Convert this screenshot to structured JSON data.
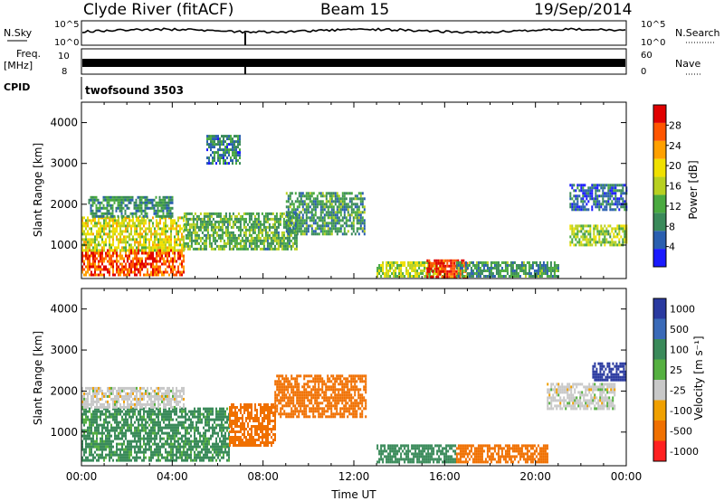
{
  "header": {
    "station": "Clyde River (fitACF)",
    "beam": "Beam 15",
    "date": "19/Sep/2014"
  },
  "aux": {
    "nsky_label": "N.Sky",
    "nsearch_label": "N.Search",
    "freq_label": "Freq.",
    "freq_unit": "[MHz]",
    "nave_label": "Nave",
    "cpid_label": "CPID",
    "cpid_value": "twofsound 3503",
    "noise_ticks": [
      "10^5",
      "10^0"
    ],
    "freq_ticks": [
      "10",
      "8"
    ],
    "nave_ticks": [
      "60",
      "0"
    ]
  },
  "colors": {
    "power": [
      "#1a1aff",
      "#2a5fb0",
      "#3a8a5a",
      "#4aaa40",
      "#b8d020",
      "#f0e000",
      "#ffa000",
      "#ff5500",
      "#e00000"
    ],
    "velocity": [
      "#2a3aa0",
      "#3a6ab8",
      "#3a8a5a",
      "#55b040",
      "#c8c8c8",
      "#f0a000",
      "#f07000",
      "#ff2020"
    ]
  },
  "chart_data": [
    {
      "type": "heatmap",
      "panel": "power",
      "xlabel": "",
      "ylabel": "Slant Range [km]",
      "xlim": [
        "00:00",
        "24:00"
      ],
      "ylim": [
        180,
        4500
      ],
      "yticks": [
        "1000",
        "2000",
        "3000",
        "4000"
      ],
      "colorbar_label": "Power [dB]",
      "colorbar_ticks": [
        "4",
        "8",
        "12",
        "16",
        "20",
        "24",
        "28"
      ],
      "colorbar_range": [
        0,
        32
      ],
      "regions": [
        {
          "t": [
            0.0,
            4.5
          ],
          "r": [
            300,
            900
          ],
          "value": 27
        },
        {
          "t": [
            0.0,
            4.5
          ],
          "r": [
            900,
            1700
          ],
          "value": 18
        },
        {
          "t": [
            0.3,
            4.0
          ],
          "r": [
            1700,
            2200
          ],
          "value": 9
        },
        {
          "t": [
            4.5,
            9.5
          ],
          "r": [
            900,
            1800
          ],
          "value": 12
        },
        {
          "t": [
            5.5,
            7.0
          ],
          "r": [
            3000,
            3700
          ],
          "value": 8
        },
        {
          "t": [
            9.0,
            12.5
          ],
          "r": [
            1300,
            2300
          ],
          "value": 10
        },
        {
          "t": [
            13.0,
            16.0
          ],
          "r": [
            250,
            600
          ],
          "value": 16
        },
        {
          "t": [
            15.2,
            17.0
          ],
          "r": [
            250,
            650
          ],
          "value": 29
        },
        {
          "t": [
            16.5,
            21.0
          ],
          "r": [
            250,
            600
          ],
          "value": 10
        },
        {
          "t": [
            21.5,
            24.0
          ],
          "r": [
            1000,
            1500
          ],
          "value": 15
        },
        {
          "t": [
            21.5,
            24.0
          ],
          "r": [
            1900,
            2500
          ],
          "value": 6
        }
      ]
    },
    {
      "type": "heatmap",
      "panel": "velocity",
      "xlabel": "Time UT",
      "ylabel": "Slant Range [km]",
      "xlim": [
        "00:00",
        "24:00"
      ],
      "ylim": [
        180,
        4500
      ],
      "xticks": [
        "00:00",
        "04:00",
        "08:00",
        "12:00",
        "16:00",
        "20:00",
        "00:00"
      ],
      "yticks": [
        "1000",
        "2000",
        "3000",
        "4000"
      ],
      "colorbar_label": "Velocity [m s⁻¹]",
      "colorbar_ticks": [
        "1000",
        "500",
        "100",
        "25",
        "-25",
        "-100",
        "-500",
        "-1000"
      ],
      "regions": [
        {
          "t": [
            0.0,
            6.5
          ],
          "r": [
            300,
            1600
          ],
          "value": 120
        },
        {
          "t": [
            0.0,
            4.5
          ],
          "r": [
            1600,
            2100
          ],
          "value": 0
        },
        {
          "t": [
            6.5,
            8.5
          ],
          "r": [
            700,
            1700
          ],
          "value": -250
        },
        {
          "t": [
            8.5,
            12.5
          ],
          "r": [
            1400,
            2400
          ],
          "value": -150
        },
        {
          "t": [
            13.0,
            16.5
          ],
          "r": [
            250,
            700
          ],
          "value": 150
        },
        {
          "t": [
            16.5,
            20.5
          ],
          "r": [
            250,
            700
          ],
          "value": -300
        },
        {
          "t": [
            20.5,
            23.5
          ],
          "r": [
            1600,
            2200
          ],
          "value": 0
        },
        {
          "t": [
            22.5,
            24.0
          ],
          "r": [
            2300,
            2700
          ],
          "value": 700
        }
      ]
    }
  ]
}
